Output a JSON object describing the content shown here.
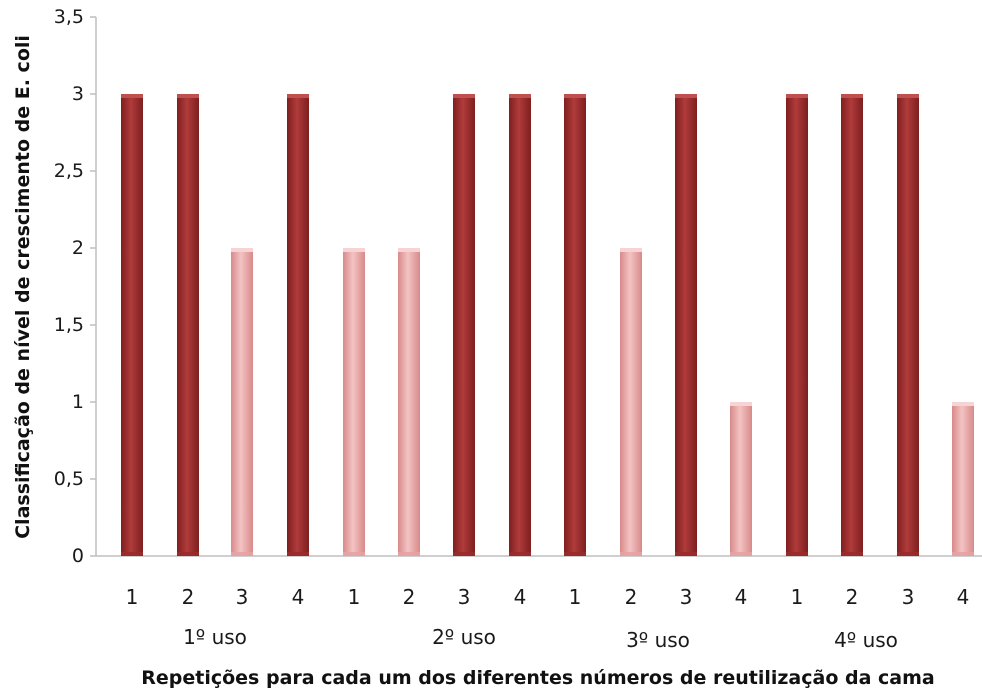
{
  "chart_data": {
    "type": "bar",
    "title": "",
    "ylabel": "Classificação de nível de crescimento de E. coli",
    "xlabel": "Repetições para cada um dos diferentes números de reutilização da cama",
    "ylim": [
      0,
      3.5
    ],
    "yticks": [
      "0",
      "0,5",
      "1",
      "1,5",
      "2",
      "2,5",
      "3",
      "3,5"
    ],
    "categories": [
      "1",
      "2",
      "3",
      "4",
      "1",
      "2",
      "3",
      "4",
      "1",
      "2",
      "3",
      "4",
      "1",
      "2",
      "3",
      "4"
    ],
    "values": [
      3,
      3,
      2,
      3,
      2,
      2,
      3,
      3,
      3,
      2,
      3,
      1,
      3,
      3,
      3,
      1
    ],
    "groups": [
      "1º uso",
      "2º uso",
      "3º uso",
      "4º uso"
    ],
    "grid": false,
    "legend": "none",
    "colors": {
      "high": "#9b2a2a",
      "high_light": "#c0504d",
      "low": "#e6a2a2",
      "low_light": "#f6d4d4",
      "axis": "#bfbfbf"
    }
  }
}
